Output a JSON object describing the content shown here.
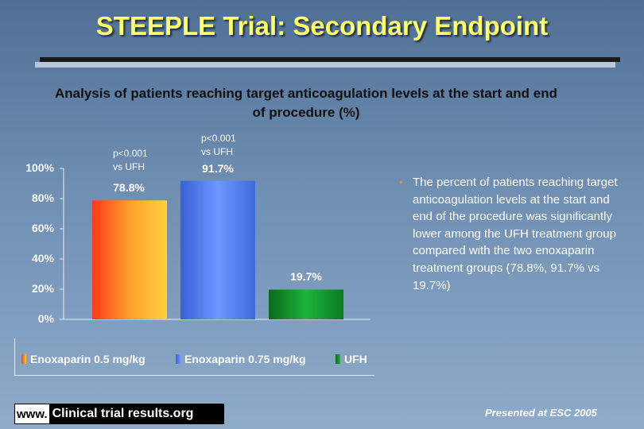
{
  "title": "STEEPLE Trial: Secondary Endpoint",
  "subtitle": "Analysis of patients reaching target anticoagulation levels at the start and end of procedure (%)",
  "chart_data": {
    "type": "bar",
    "categories": [
      "Enoxaparin 0.5 mg/kg",
      "Enoxaparin 0.75 mg/kg",
      "UFH"
    ],
    "values": [
      78.8,
      91.7,
      19.7
    ],
    "value_labels": [
      "78.8%",
      "91.7%",
      "19.7%"
    ],
    "ylim": [
      0,
      100
    ],
    "yticks": [
      0,
      20,
      40,
      60,
      80,
      100
    ],
    "ytick_labels": [
      "0%",
      "20%",
      "40%",
      "60%",
      "80%",
      "100%"
    ],
    "colors": [
      "#ff9a2a",
      "#5a86ee",
      "#139b2b"
    ],
    "annotations": [
      {
        "bar": 0,
        "line1": "p<0.001",
        "line2": "vs UFH"
      },
      {
        "bar": 1,
        "line1": "p<0.001",
        "line2": "vs UFH"
      }
    ],
    "legend_position": "bottom",
    "grid": false
  },
  "legend": [
    {
      "label": "Enoxaparin 0.5 mg/kg",
      "color": "#ff9a2a"
    },
    {
      "label": "Enoxaparin 0.75 mg/kg",
      "color": "#5a86ee"
    },
    {
      "label": "UFH",
      "color": "#139b2b"
    }
  ],
  "bullet": "The percent of patients reaching target anticoagulation levels at the start and end of the procedure was significantly lower among the UFH treatment group compared with the two enoxaparin treatment groups (78.8%, 91.7% vs 19.7%)",
  "bullet_marker": "•",
  "footer": {
    "www": "www.",
    "site": "Clinical trial results.org"
  },
  "presented": "Presented at ESC 2005"
}
